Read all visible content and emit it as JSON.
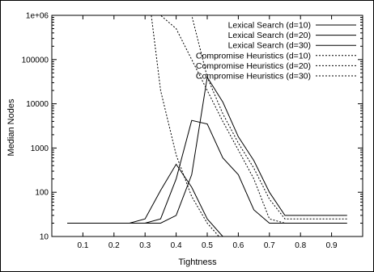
{
  "chart_data": {
    "type": "line",
    "xlabel": "Tightness",
    "ylabel": "Median Nodes",
    "xlim": [
      0.0,
      1.0
    ],
    "ylim": [
      10,
      1000000
    ],
    "yscale": "log",
    "legend_position": "top-right",
    "x_ticks": [
      "0.1",
      "0.2",
      "0.3",
      "0.4",
      "0.5",
      "0.6",
      "0.7",
      "0.8",
      "0.9"
    ],
    "y_ticks": [
      "10",
      "100",
      "1000",
      "10000",
      "100000",
      "1e+06"
    ],
    "x_tick_values": [
      0.1,
      0.2,
      0.3,
      0.4,
      0.5,
      0.6,
      0.7,
      0.8,
      0.9
    ],
    "y_tick_values": [
      10,
      100,
      1000,
      10000,
      100000,
      1000000
    ],
    "series": [
      {
        "name": "Lexical Search (d=10)",
        "style": "solid",
        "x": [
          0.05,
          0.1,
          0.15,
          0.2,
          0.25,
          0.3,
          0.35,
          0.4,
          0.45,
          0.5,
          0.55
        ],
        "y": [
          20,
          20,
          20,
          20,
          20,
          25,
          110,
          430,
          130,
          25,
          10
        ]
      },
      {
        "name": "Lexical Search (d=20)",
        "style": "solid",
        "x": [
          0.05,
          0.1,
          0.15,
          0.2,
          0.25,
          0.3,
          0.35,
          0.4,
          0.45,
          0.5,
          0.55,
          0.6,
          0.65,
          0.7,
          0.75,
          0.8,
          0.85,
          0.9,
          0.95
        ],
        "y": [
          20,
          20,
          20,
          20,
          20,
          20,
          25,
          200,
          4200,
          3500,
          600,
          250,
          40,
          20,
          20,
          20,
          20,
          20,
          20
        ]
      },
      {
        "name": "Lexical Search (d=30)",
        "style": "solid",
        "x": [
          0.05,
          0.1,
          0.15,
          0.2,
          0.25,
          0.3,
          0.35,
          0.4,
          0.45,
          0.5,
          0.55,
          0.6,
          0.65,
          0.7,
          0.75,
          0.8,
          0.85,
          0.9,
          0.95
        ],
        "y": [
          20,
          20,
          20,
          20,
          20,
          20,
          20,
          30,
          250,
          40000,
          11000,
          1800,
          520,
          100,
          30,
          30,
          30,
          30,
          30
        ]
      },
      {
        "name": "Compromise Heuristics (d=10)",
        "style": "dotted",
        "x": [
          0.05,
          0.1,
          0.15,
          0.2,
          0.25,
          0.3,
          0.32,
          0.35,
          0.4,
          0.45,
          0.5,
          0.55
        ],
        "y": [
          1000000,
          1000000,
          1000000,
          1000000,
          1000000,
          1000000,
          1000000,
          20000,
          700,
          80,
          20,
          8
        ]
      },
      {
        "name": "Compromise Heuristics (d=20)",
        "style": "dotted",
        "x": [
          0.05,
          0.1,
          0.15,
          0.2,
          0.25,
          0.3,
          0.35,
          0.4,
          0.45,
          0.5,
          0.55,
          0.6,
          0.65,
          0.7,
          0.75,
          0.8,
          0.85,
          0.9,
          0.95
        ],
        "y": [
          1000000,
          1000000,
          1000000,
          1000000,
          1000000,
          1000000,
          1000000,
          500000,
          100000,
          20000,
          4000,
          900,
          200,
          25,
          20,
          20,
          20,
          20,
          20
        ]
      },
      {
        "name": "Compromise Heuristics (d=30)",
        "style": "dotted",
        "x": [
          0.05,
          0.1,
          0.15,
          0.2,
          0.25,
          0.3,
          0.35,
          0.4,
          0.45,
          0.5,
          0.55,
          0.6,
          0.65,
          0.7,
          0.75,
          0.8,
          0.85,
          0.9,
          0.95
        ],
        "y": [
          1000000,
          1000000,
          1000000,
          1000000,
          1000000,
          1000000,
          1000000,
          1000000,
          1000000,
          40000,
          6000,
          1300,
          350,
          70,
          25,
          25,
          25,
          25,
          25
        ]
      }
    ]
  }
}
